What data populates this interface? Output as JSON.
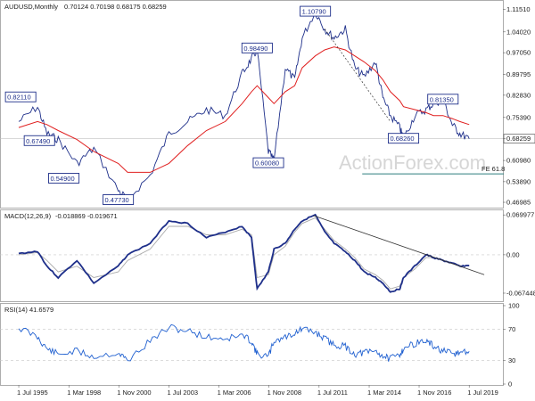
{
  "header": {
    "symbol": "AUDUSD,Monthly",
    "ohlc": "0.70124 0.70198 0.68175 0.68259"
  },
  "watermark": "ActionForex.com",
  "chart_data": [
    {
      "type": "line",
      "name": "price",
      "price_scale_ticks": [
        "1.11510",
        "1.04020",
        "0.97050",
        "0.89795",
        "0.82830",
        "0.75390",
        "0.68259",
        "0.60980",
        "0.53890",
        "0.46985"
      ],
      "price_tick_values": [
        1.1151,
        1.0402,
        0.9705,
        0.89795,
        0.8283,
        0.7539,
        0.68259,
        0.6098,
        0.5389,
        0.46985
      ],
      "ylim": [
        0.455,
        1.135
      ],
      "last_price": "0.68259",
      "x_dates": [
        1995.5,
        1996.5,
        1997.0,
        1997.6,
        1998.6,
        1999.5,
        2000.8,
        2001.3,
        2002.5,
        2003.5,
        2004.5,
        2005.5,
        2006.5,
        2007.4,
        2007.9,
        2008.2,
        2008.8,
        2009.1,
        2009.7,
        2010.2,
        2010.6,
        2011.3,
        2011.8,
        2012.3,
        2012.9,
        2013.4,
        2013.9,
        2014.5,
        2014.9,
        2015.3,
        2015.8,
        2016.0,
        2016.6,
        2017.2,
        2017.6,
        2018.1,
        2018.6,
        2019.0,
        2019.5
      ],
      "price_values": [
        0.74,
        0.79,
        0.7,
        0.68,
        0.6,
        0.65,
        0.51,
        0.48,
        0.56,
        0.7,
        0.74,
        0.78,
        0.76,
        0.9,
        0.95,
        0.98,
        0.64,
        0.61,
        0.92,
        0.88,
        1.02,
        1.1079,
        1.05,
        1.02,
        1.05,
        0.92,
        0.89,
        0.94,
        0.82,
        0.76,
        0.72,
        0.6826,
        0.76,
        0.78,
        0.8,
        0.8135,
        0.73,
        0.7,
        0.68259
      ],
      "ma_values": [
        0.72,
        0.74,
        0.73,
        0.71,
        0.68,
        0.64,
        0.6,
        0.57,
        0.57,
        0.6,
        0.66,
        0.71,
        0.74,
        0.8,
        0.84,
        0.86,
        0.82,
        0.8,
        0.84,
        0.86,
        0.92,
        0.96,
        0.98,
        0.99,
        0.98,
        0.96,
        0.94,
        0.91,
        0.88,
        0.84,
        0.81,
        0.79,
        0.78,
        0.77,
        0.76,
        0.76,
        0.75,
        0.74,
        0.73
      ],
      "swing_labels": [
        {
          "text": "0.82110",
          "x": 1995.6,
          "y": 0.8211
        },
        {
          "text": "0.67490",
          "x": 1996.6,
          "y": 0.6749
        },
        {
          "text": "0.54900",
          "x": 1997.9,
          "y": 0.549
        },
        {
          "text": "0.47730",
          "x": 2000.8,
          "y": 0.4773
        },
        {
          "text": "0.98490",
          "x": 2008.2,
          "y": 0.9849
        },
        {
          "text": "0.60080",
          "x": 2008.8,
          "y": 0.6008
        },
        {
          "text": "1.10790",
          "x": 2011.3,
          "y": 1.1079
        },
        {
          "text": "0.68260",
          "x": 2016.0,
          "y": 0.6826
        },
        {
          "text": "0.81350",
          "x": 2018.1,
          "y": 0.8135
        }
      ],
      "fib_label": "FE 61.8",
      "fib_value": 0.565
    },
    {
      "type": "line",
      "name": "macd",
      "label": "MACD(12,26,9)",
      "values_text": "-0.018869 -0.019671",
      "scale_ticks": [
        "0.069977",
        "0.00",
        "-0.067448"
      ],
      "tick_values": [
        0.069977,
        0.0,
        -0.067448
      ],
      "ylim": [
        -0.08,
        0.075
      ],
      "values": [
        0.002,
        0.006,
        -0.02,
        -0.04,
        -0.01,
        -0.05,
        -0.02,
        0.0,
        0.02,
        0.06,
        0.055,
        0.03,
        0.04,
        0.05,
        0.03,
        -0.06,
        -0.03,
        0.01,
        0.02,
        0.045,
        0.06,
        0.07,
        0.04,
        0.02,
        0.005,
        -0.01,
        -0.03,
        -0.04,
        -0.05,
        -0.065,
        -0.06,
        -0.04,
        -0.02,
        0.0,
        -0.005,
        -0.01,
        -0.015,
        -0.02,
        -0.019
      ],
      "signal": [
        0.0,
        0.004,
        -0.01,
        -0.03,
        -0.02,
        -0.04,
        -0.03,
        -0.01,
        0.01,
        0.05,
        0.05,
        0.035,
        0.035,
        0.045,
        0.035,
        -0.04,
        -0.035,
        0.0,
        0.015,
        0.04,
        0.055,
        0.065,
        0.045,
        0.025,
        0.01,
        -0.005,
        -0.025,
        -0.035,
        -0.045,
        -0.06,
        -0.055,
        -0.04,
        -0.025,
        -0.005,
        -0.005,
        -0.01,
        -0.014,
        -0.019,
        -0.0197
      ],
      "trendline": [
        [
          2011.2,
          0.069
        ],
        [
          2020.3,
          -0.035
        ]
      ]
    },
    {
      "type": "line",
      "name": "rsi",
      "label": "RSI(14)",
      "value_text": "41.6579",
      "scale_ticks": [
        "100",
        "70",
        "30",
        "0"
      ],
      "tick_values": [
        100,
        70,
        30,
        0
      ],
      "ylim": [
        0,
        100
      ],
      "values": [
        72,
        60,
        45,
        38,
        42,
        35,
        40,
        30,
        55,
        72,
        68,
        60,
        58,
        62,
        55,
        38,
        35,
        55,
        60,
        65,
        70,
        66,
        58,
        50,
        48,
        38,
        40,
        42,
        36,
        32,
        38,
        45,
        52,
        55,
        48,
        42,
        38,
        40,
        41.6579
      ]
    }
  ],
  "x_axis": {
    "labels": [
      "1 Jul 1995",
      "1 Mar 1998",
      "1 Nov 2000",
      "1 Jul 2003",
      "1 Mar 2006",
      "1 Nov 2008",
      "1 Jul 2011",
      "1 Mar 2014",
      "1 Nov 2016",
      "1 Jul 2019"
    ],
    "label_dates": [
      1995.5,
      1998.17,
      2000.83,
      2003.5,
      2006.17,
      2008.83,
      2011.5,
      2014.17,
      2016.83,
      2019.5
    ]
  },
  "colors": {
    "price": "#1e2f8a",
    "ma": "#e02020",
    "macd": "#1e2f8a",
    "signal": "#aaaaaa",
    "rsi": "#2060d0",
    "fib": "#2e7d7d",
    "trend": "#333333",
    "grid": "#c8c8c8"
  }
}
